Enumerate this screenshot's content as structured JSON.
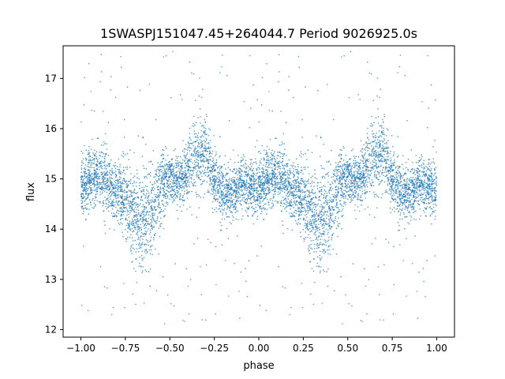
{
  "chart_data": {
    "type": "scatter",
    "title": "1SWASPJ151047.45+264044.7 Period 9026925.0s",
    "xlabel": "phase",
    "ylabel": "flux",
    "xlim": [
      -1.1,
      1.1
    ],
    "ylim": [
      11.85,
      17.65
    ],
    "x_ticks": [
      -1.0,
      -0.75,
      -0.5,
      -0.25,
      0.0,
      0.25,
      0.5,
      0.75,
      1.0
    ],
    "x_tick_labels": [
      "−1.00",
      "−0.75",
      "−0.50",
      "−0.25",
      "0.00",
      "0.25",
      "0.50",
      "0.75",
      "1.00"
    ],
    "y_ticks": [
      12,
      13,
      14,
      15,
      16,
      17
    ],
    "y_tick_labels": [
      "12",
      "13",
      "14",
      "15",
      "16",
      "17"
    ],
    "grid": false,
    "legend": "none",
    "point_color": "#1f77b4",
    "series": [
      {
        "profile_phase": [
          0.0,
          0.05,
          0.1,
          0.15,
          0.2,
          0.25,
          0.3,
          0.35,
          0.4,
          0.45,
          0.5,
          0.55,
          0.6,
          0.65,
          0.7,
          0.75,
          0.8,
          0.85,
          0.9,
          0.95,
          1.0
        ],
        "profile_flux_center": [
          14.8,
          15.0,
          15.1,
          14.9,
          14.75,
          14.6,
          14.3,
          14.1,
          14.3,
          14.9,
          15.0,
          14.9,
          15.2,
          15.5,
          15.6,
          14.9,
          14.7,
          14.7,
          14.9,
          14.85,
          14.8
        ],
        "profile_flux_spread": [
          0.35,
          0.4,
          0.4,
          0.4,
          0.4,
          0.5,
          0.6,
          0.7,
          0.6,
          0.45,
          0.3,
          0.3,
          0.4,
          0.5,
          0.45,
          0.4,
          0.35,
          0.35,
          0.35,
          0.35,
          0.35
        ],
        "flux_min": 12.1,
        "flux_max": 17.6
      }
    ]
  }
}
